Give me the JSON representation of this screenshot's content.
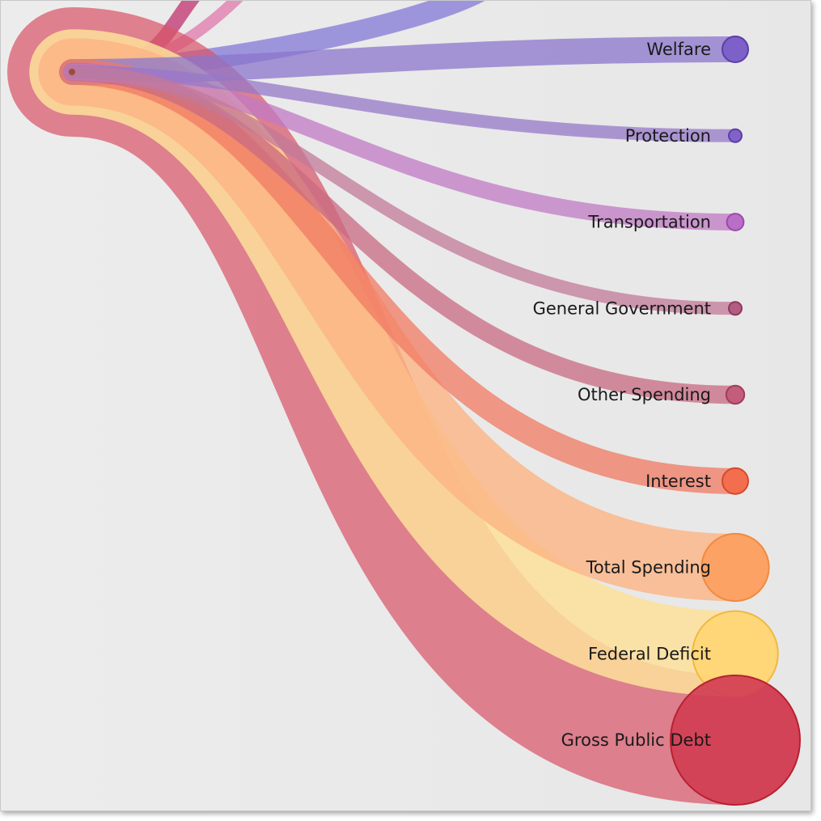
{
  "diagram": {
    "source_dot_color": "#a04a3a",
    "offscreen_links": [
      {
        "color": "#c0306e",
        "opacity": 0.75
      },
      {
        "color": "#e070a8",
        "opacity": 0.7
      },
      {
        "color": "#8a80d8",
        "opacity": 0.8
      }
    ],
    "nodes": [
      {
        "label": "Welfare",
        "color": "#7b5cc8",
        "stroke": "#5a3fa8",
        "relative_size": 1.0,
        "link_color": "#8b75cc",
        "link_opacity": 0.75
      },
      {
        "label": "Protection",
        "color": "#7e5ec6",
        "stroke": "#5b3ea8",
        "relative_size": 0.5,
        "link_color": "#9578c8",
        "link_opacity": 0.75
      },
      {
        "label": "Transportation",
        "color": "#b86ac8",
        "stroke": "#9a4aaa",
        "relative_size": 0.65,
        "link_color": "#c07ac4",
        "link_opacity": 0.75
      },
      {
        "label": "General Government",
        "color": "#b0587e",
        "stroke": "#8e3a60",
        "relative_size": 0.5,
        "link_color": "#c27a98",
        "link_opacity": 0.75
      },
      {
        "label": "Other Spending",
        "color": "#c05a78",
        "stroke": "#a03c5a",
        "relative_size": 0.7,
        "link_color": "#c86a82",
        "link_opacity": 0.75
      },
      {
        "label": "Interest",
        "color": "#f26a4a",
        "stroke": "#d8482a",
        "relative_size": 1.0,
        "link_color": "#f07a62",
        "link_opacity": 0.75
      },
      {
        "label": "Total Spending",
        "color": "#fba060",
        "stroke": "#f08a40",
        "relative_size": 2.6,
        "link_color": "#fbb483",
        "link_opacity": 0.8
      },
      {
        "label": "Federal Deficit",
        "color": "#ffd574",
        "stroke": "#f0b840",
        "relative_size": 3.3,
        "link_color": "#fde09a",
        "link_opacity": 0.85
      },
      {
        "label": "Gross Public Debt",
        "color": "#d13e54",
        "stroke": "#b82030",
        "relative_size": 5.0,
        "link_color": "#d8566a",
        "link_opacity": 0.72
      }
    ]
  }
}
